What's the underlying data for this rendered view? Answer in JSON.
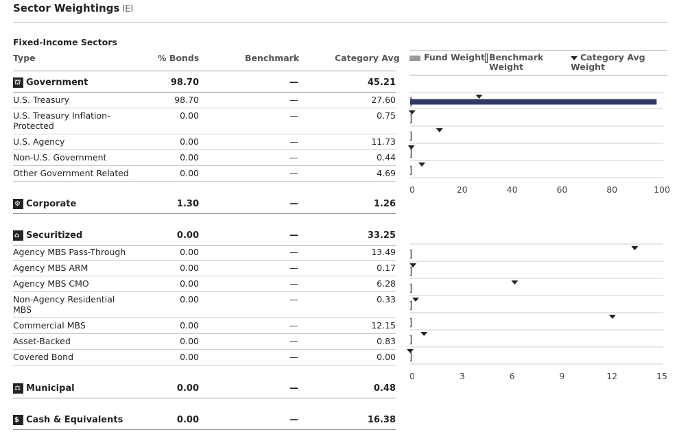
{
  "header": {
    "title": "Sector Weightings",
    "ticker": "IEI"
  },
  "section": {
    "title": "Fixed-Income Sectors"
  },
  "columns": {
    "type": "Type",
    "bonds": "% Bonds",
    "benchmark": "Benchmark",
    "category": "Category Avg"
  },
  "legend": {
    "fund": "Fund Weight",
    "benchmark": "Benchmark Weight",
    "category": "Category Avg Weight"
  },
  "rows": [
    {
      "label": "Government",
      "bonds": "98.70",
      "bench": "—",
      "cat": "45.21",
      "group": true,
      "icon": "government-icon",
      "glyph": "⛫"
    },
    {
      "label": "U.S. Treasury",
      "bonds": "98.70",
      "bench": "—",
      "cat": "27.60"
    },
    {
      "label": "U.S. Treasury Inflation-Protected",
      "bonds": "0.00",
      "bench": "—",
      "cat": "0.75"
    },
    {
      "label": "U.S. Agency",
      "bonds": "0.00",
      "bench": "—",
      "cat": "11.73"
    },
    {
      "label": "Non-U.S. Government",
      "bonds": "0.00",
      "bench": "—",
      "cat": "0.44"
    },
    {
      "label": "Other Government Related",
      "bonds": "0.00",
      "bench": "—",
      "cat": "4.69"
    },
    {
      "label": "Corporate",
      "bonds": "1.30",
      "bench": "—",
      "cat": "1.26",
      "group": true,
      "icon": "corporate-icon",
      "glyph": "⚙"
    },
    {
      "label": "Securitized",
      "bonds": "0.00",
      "bench": "—",
      "cat": "33.25",
      "group": true,
      "icon": "securitized-icon",
      "glyph": "⌂"
    },
    {
      "label": "Agency MBS Pass-Through",
      "bonds": "0.00",
      "bench": "—",
      "cat": "13.49"
    },
    {
      "label": "Agency MBS ARM",
      "bonds": "0.00",
      "bench": "—",
      "cat": "0.17"
    },
    {
      "label": "Agency MBS CMO",
      "bonds": "0.00",
      "bench": "—",
      "cat": "6.28"
    },
    {
      "label": "Non-Agency Residential MBS",
      "bonds": "0.00",
      "bench": "—",
      "cat": "0.33"
    },
    {
      "label": "Commercial MBS",
      "bonds": "0.00",
      "bench": "—",
      "cat": "12.15"
    },
    {
      "label": "Asset-Backed",
      "bonds": "0.00",
      "bench": "—",
      "cat": "0.83"
    },
    {
      "label": "Covered Bond",
      "bonds": "0.00",
      "bench": "—",
      "cat": "0.00"
    },
    {
      "label": "Municipal",
      "bonds": "0.00",
      "bench": "—",
      "cat": "0.48",
      "group": true,
      "icon": "municipal-icon",
      "glyph": "⚖"
    },
    {
      "label": "Cash & Equivalents",
      "bonds": "0.00",
      "bench": "—",
      "cat": "16.38",
      "group": true,
      "icon": "cash-icon",
      "glyph": "$"
    }
  ],
  "chart_data": [
    {
      "type": "bar",
      "categories": [
        "U.S. Treasury",
        "U.S. Treasury Inflation-Protected",
        "U.S. Agency",
        "Non-U.S. Government",
        "Other Government Related"
      ],
      "series": [
        {
          "name": "Fund Weight",
          "values": [
            98.7,
            0.0,
            0.0,
            0.0,
            0.0
          ]
        },
        {
          "name": "Category Avg Weight",
          "values": [
            27.6,
            0.75,
            11.73,
            0.44,
            4.69
          ]
        }
      ],
      "xlim": [
        0,
        100
      ],
      "ticks": [
        0,
        20,
        40,
        60,
        80,
        100
      ],
      "colors": {
        "fund": "#2d3a6b",
        "category": "#222222"
      }
    },
    {
      "type": "bar",
      "categories": [
        "Agency MBS Pass-Through",
        "Agency MBS ARM",
        "Agency MBS CMO",
        "Non-Agency Residential MBS",
        "Commercial MBS",
        "Asset-Backed",
        "Covered Bond"
      ],
      "series": [
        {
          "name": "Fund Weight",
          "values": [
            0.0,
            0.0,
            0.0,
            0.0,
            0.0,
            0.0,
            0.0
          ]
        },
        {
          "name": "Category Avg Weight",
          "values": [
            13.49,
            0.17,
            6.28,
            0.33,
            12.15,
            0.83,
            0.0
          ]
        }
      ],
      "xlim": [
        0,
        15
      ],
      "ticks": [
        0,
        3,
        6,
        9,
        12,
        15
      ],
      "colors": {
        "fund": "#2d3a6b",
        "category": "#222222"
      }
    }
  ]
}
